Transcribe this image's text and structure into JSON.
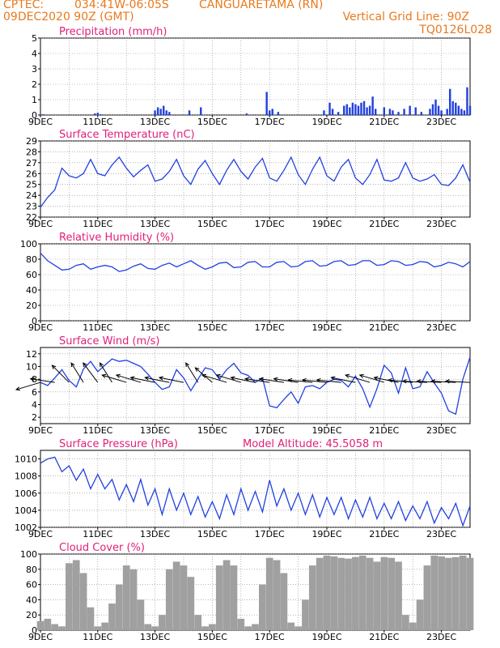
{
  "header": {
    "source": "CPTEC:",
    "coords": "034:41W-06:05S",
    "location": "CANGUARETAMA (RN)",
    "run": "09DEC2020 90Z (GMT)",
    "grid_line": "Vertical Grid Line: 90Z",
    "model": "TQ0126L028"
  },
  "colors": {
    "header": "#e87a1e",
    "title": "#e0207a",
    "line": "#2040e0",
    "cloud": "#a0a0a0",
    "grid": "#888888"
  },
  "chart_data": [
    {
      "type": "bar",
      "title": "Precipitation (mm/h)",
      "x_tick_labels": [
        "9DEC",
        "11DEC",
        "13DEC",
        "15DEC",
        "17DEC",
        "19DEC",
        "21DEC",
        "23DEC"
      ],
      "ylim": [
        0,
        5
      ],
      "yticks": [
        0,
        1,
        2,
        3,
        4,
        5
      ],
      "x_range_days": [
        9,
        24
      ],
      "color": "#2040e0",
      "points": [
        [
          9.1,
          0.05
        ],
        [
          10.9,
          0.1
        ],
        [
          11.0,
          0.15
        ],
        [
          11.1,
          0.05
        ],
        [
          13.0,
          0.3
        ],
        [
          13.1,
          0.5
        ],
        [
          13.2,
          0.4
        ],
        [
          13.3,
          0.6
        ],
        [
          13.4,
          0.3
        ],
        [
          13.5,
          0.2
        ],
        [
          14.2,
          0.3
        ],
        [
          14.6,
          0.5
        ],
        [
          16.2,
          0.1
        ],
        [
          16.9,
          1.5
        ],
        [
          17.0,
          0.3
        ],
        [
          17.1,
          0.4
        ],
        [
          17.3,
          0.2
        ],
        [
          18.9,
          0.3
        ],
        [
          19.1,
          0.8
        ],
        [
          19.2,
          0.4
        ],
        [
          19.4,
          0.2
        ],
        [
          19.6,
          0.6
        ],
        [
          19.7,
          0.7
        ],
        [
          19.8,
          0.5
        ],
        [
          19.9,
          0.8
        ],
        [
          20.0,
          0.7
        ],
        [
          20.1,
          0.6
        ],
        [
          20.2,
          0.8
        ],
        [
          20.3,
          0.9
        ],
        [
          20.4,
          0.5
        ],
        [
          20.5,
          0.6
        ],
        [
          20.6,
          1.2
        ],
        [
          20.7,
          0.4
        ],
        [
          21.0,
          0.5
        ],
        [
          21.2,
          0.4
        ],
        [
          21.3,
          0.3
        ],
        [
          21.5,
          0.2
        ],
        [
          21.7,
          0.4
        ],
        [
          21.9,
          0.6
        ],
        [
          22.1,
          0.5
        ],
        [
          22.3,
          0.2
        ],
        [
          22.6,
          0.4
        ],
        [
          22.7,
          0.7
        ],
        [
          22.8,
          1.0
        ],
        [
          22.9,
          0.6
        ],
        [
          23.0,
          0.3
        ],
        [
          23.2,
          0.4
        ],
        [
          23.3,
          1.7
        ],
        [
          23.4,
          0.9
        ],
        [
          23.5,
          0.8
        ],
        [
          23.6,
          0.6
        ],
        [
          23.7,
          0.4
        ],
        [
          23.8,
          0.3
        ],
        [
          23.9,
          1.8
        ],
        [
          24.0,
          0.6
        ]
      ]
    },
    {
      "type": "line",
      "title": "Surface Temperature (nC)",
      "x_tick_labels": [
        "9DEC",
        "11DEC",
        "13DEC",
        "15DEC",
        "17DEC",
        "19DEC",
        "21DEC",
        "23DEC"
      ],
      "ylim": [
        22,
        29
      ],
      "yticks": [
        22,
        23,
        24,
        25,
        26,
        27,
        28,
        29
      ],
      "x_range_days": [
        9,
        24
      ],
      "color": "#2040e0",
      "x": [
        9.0,
        9.25,
        9.5,
        9.75,
        10.0,
        10.25,
        10.5,
        10.75,
        11.0,
        11.25,
        11.5,
        11.75,
        12.0,
        12.25,
        12.5,
        12.75,
        13.0,
        13.25,
        13.5,
        13.75,
        14.0,
        14.25,
        14.5,
        14.75,
        15.0,
        15.25,
        15.5,
        15.75,
        16.0,
        16.25,
        16.5,
        16.75,
        17.0,
        17.25,
        17.5,
        17.75,
        18.0,
        18.25,
        18.5,
        18.75,
        19.0,
        19.25,
        19.5,
        19.75,
        20.0,
        20.25,
        20.5,
        20.75,
        21.0,
        21.25,
        21.5,
        21.75,
        22.0,
        22.25,
        22.5,
        22.75,
        23.0,
        23.25,
        23.5,
        23.75,
        24.0
      ],
      "y": [
        22.9,
        23.8,
        24.5,
        26.5,
        25.8,
        25.6,
        26.0,
        27.3,
        26.0,
        25.8,
        26.8,
        27.5,
        26.5,
        25.7,
        26.3,
        26.8,
        25.3,
        25.5,
        26.2,
        27.3,
        25.8,
        25.0,
        26.4,
        27.2,
        26.0,
        25.0,
        26.3,
        27.3,
        26.2,
        25.5,
        26.6,
        27.4,
        25.6,
        25.3,
        26.3,
        27.5,
        25.9,
        25.0,
        26.4,
        27.5,
        25.8,
        25.3,
        26.6,
        27.3,
        25.6,
        25.0,
        25.9,
        27.3,
        25.4,
        25.3,
        25.6,
        27.0,
        25.6,
        25.3,
        25.5,
        25.9,
        25.0,
        24.9,
        25.6,
        26.8,
        25.2
      ]
    },
    {
      "type": "line",
      "title": "Relative Humidity (%)",
      "x_tick_labels": [
        "9DEC",
        "11DEC",
        "13DEC",
        "15DEC",
        "17DEC",
        "19DEC",
        "21DEC",
        "23DEC"
      ],
      "ylim": [
        0,
        100
      ],
      "yticks": [
        0,
        20,
        40,
        60,
        80,
        100
      ],
      "x_range_days": [
        9,
        24
      ],
      "color": "#2040e0",
      "x": [
        9.0,
        9.25,
        9.5,
        9.75,
        10.0,
        10.25,
        10.5,
        10.75,
        11.0,
        11.25,
        11.5,
        11.75,
        12.0,
        12.25,
        12.5,
        12.75,
        13.0,
        13.25,
        13.5,
        13.75,
        14.0,
        14.25,
        14.5,
        14.75,
        15.0,
        15.25,
        15.5,
        15.75,
        16.0,
        16.25,
        16.5,
        16.75,
        17.0,
        17.25,
        17.5,
        17.75,
        18.0,
        18.25,
        18.5,
        18.75,
        19.0,
        19.25,
        19.5,
        19.75,
        20.0,
        20.25,
        20.5,
        20.75,
        21.0,
        21.25,
        21.5,
        21.75,
        22.0,
        22.25,
        22.5,
        22.75,
        23.0,
        23.25,
        23.5,
        23.75,
        24.0
      ],
      "y": [
        88,
        78,
        72,
        66,
        67,
        72,
        74,
        67,
        70,
        72,
        70,
        64,
        66,
        71,
        74,
        68,
        67,
        72,
        75,
        70,
        74,
        78,
        72,
        67,
        70,
        75,
        76,
        69,
        70,
        76,
        77,
        70,
        70,
        76,
        77,
        70,
        71,
        77,
        78,
        71,
        72,
        77,
        78,
        72,
        73,
        78,
        78,
        72,
        73,
        78,
        77,
        72,
        73,
        77,
        76,
        70,
        72,
        76,
        74,
        70,
        77
      ]
    },
    {
      "type": "line",
      "title": "Surface Wind (m/s)",
      "x_tick_labels": [
        "9DEC",
        "11DEC",
        "13DEC",
        "15DEC",
        "17DEC",
        "19DEC",
        "21DEC",
        "23DEC"
      ],
      "ylim": [
        1,
        13
      ],
      "yticks": [
        2,
        4,
        6,
        8,
        10,
        12
      ],
      "x_range_days": [
        9,
        24
      ],
      "color": "#2040e0",
      "x": [
        9.0,
        9.25,
        9.5,
        9.75,
        10.0,
        10.25,
        10.5,
        10.75,
        11.0,
        11.25,
        11.5,
        11.75,
        12.0,
        12.25,
        12.5,
        12.75,
        13.0,
        13.25,
        13.5,
        13.75,
        14.0,
        14.25,
        14.5,
        14.75,
        15.0,
        15.25,
        15.5,
        15.75,
        16.0,
        16.25,
        16.5,
        16.75,
        17.0,
        17.25,
        17.5,
        17.75,
        18.0,
        18.25,
        18.5,
        18.75,
        19.0,
        19.25,
        19.5,
        19.75,
        20.0,
        20.25,
        20.5,
        20.75,
        21.0,
        21.25,
        21.5,
        21.75,
        22.0,
        22.25,
        22.5,
        22.75,
        23.0,
        23.25,
        23.5,
        23.75,
        24.0
      ],
      "y": [
        7.5,
        7.0,
        8.2,
        9.5,
        7.8,
        6.8,
        9.6,
        10.8,
        9.2,
        10.2,
        11.2,
        10.8,
        11.0,
        10.5,
        10.0,
        8.8,
        7.5,
        6.4,
        6.8,
        9.5,
        8.2,
        6.2,
        8.0,
        9.8,
        9.5,
        8.0,
        9.5,
        10.5,
        9.0,
        8.6,
        7.5,
        8.2,
        3.8,
        3.5,
        4.8,
        6.0,
        4.2,
        6.8,
        7.0,
        6.5,
        7.5,
        8.0,
        7.8,
        6.8,
        8.5,
        6.5,
        3.6,
        6.5,
        10.2,
        9.0,
        5.8,
        9.8,
        6.5,
        6.8,
        9.2,
        7.4,
        5.8,
        3.0,
        2.5,
        8.0,
        11.5
      ],
      "wind_arrows": [
        [
          9.0,
          -1,
          -0.3
        ],
        [
          9.5,
          -1,
          0.15
        ],
        [
          10.0,
          -0.7,
          0.7
        ],
        [
          10.5,
          -0.5,
          0.8
        ],
        [
          11.0,
          -0.6,
          0.8
        ],
        [
          11.5,
          -0.5,
          0.8
        ],
        [
          12.0,
          -1,
          0.3
        ],
        [
          12.5,
          -1,
          0.3
        ],
        [
          13.0,
          -1,
          0.2
        ],
        [
          13.5,
          -1,
          0.2
        ],
        [
          14.0,
          -1,
          0.2
        ],
        [
          14.5,
          -0.5,
          0.8
        ],
        [
          15.0,
          -0.7,
          0.6
        ],
        [
          15.5,
          -1,
          0.3
        ],
        [
          16.0,
          -1,
          0.3
        ],
        [
          16.5,
          -1,
          0.2
        ],
        [
          17.0,
          -1,
          0.15
        ],
        [
          17.5,
          -1,
          0.15
        ],
        [
          18.0,
          -1,
          0.15
        ],
        [
          18.5,
          -1,
          0.1
        ],
        [
          19.0,
          -1,
          0.1
        ],
        [
          19.5,
          -1,
          0.1
        ],
        [
          20.0,
          -1,
          0.2
        ],
        [
          20.5,
          -1,
          0.3
        ],
        [
          21.0,
          -1,
          0.3
        ],
        [
          21.5,
          -1,
          0.2
        ],
        [
          22.0,
          -1,
          0.1
        ],
        [
          22.5,
          -1,
          0.05
        ],
        [
          23.0,
          -1,
          0.05
        ],
        [
          23.5,
          -1,
          0.05
        ],
        [
          24.0,
          -1,
          0.05
        ]
      ]
    },
    {
      "type": "line",
      "title": "Surface Pressure (hPa)",
      "annotation": "Model Altitude: 45.5058  m",
      "x_tick_labels": [
        "9DEC",
        "11DEC",
        "13DEC",
        "15DEC",
        "17DEC",
        "19DEC",
        "21DEC",
        "23DEC"
      ],
      "ylim": [
        1002,
        1011
      ],
      "yticks": [
        1002,
        1004,
        1006,
        1008,
        1010
      ],
      "x_range_days": [
        9,
        24
      ],
      "color": "#2040e0",
      "x": [
        9.0,
        9.25,
        9.5,
        9.75,
        10.0,
        10.25,
        10.5,
        10.75,
        11.0,
        11.25,
        11.5,
        11.75,
        12.0,
        12.25,
        12.5,
        12.75,
        13.0,
        13.25,
        13.5,
        13.75,
        14.0,
        14.25,
        14.5,
        14.75,
        15.0,
        15.25,
        15.5,
        15.75,
        16.0,
        16.25,
        16.5,
        16.75,
        17.0,
        17.25,
        17.5,
        17.75,
        18.0,
        18.25,
        18.5,
        18.75,
        19.0,
        19.25,
        19.5,
        19.75,
        20.0,
        20.25,
        20.5,
        20.75,
        21.0,
        21.25,
        21.5,
        21.75,
        22.0,
        22.25,
        22.5,
        22.75,
        23.0,
        23.25,
        23.5,
        23.75,
        24.0
      ],
      "y": [
        1009.5,
        1010.0,
        1010.2,
        1008.5,
        1009.2,
        1007.5,
        1008.8,
        1006.5,
        1008.2,
        1006.5,
        1007.6,
        1005.2,
        1007.0,
        1005.0,
        1007.6,
        1004.6,
        1006.5,
        1003.5,
        1006.5,
        1004.0,
        1006.0,
        1003.5,
        1005.6,
        1003.2,
        1005.0,
        1003.0,
        1005.8,
        1003.5,
        1006.5,
        1004.0,
        1006.2,
        1003.8,
        1007.5,
        1004.5,
        1006.5,
        1004.0,
        1006.0,
        1003.5,
        1005.8,
        1003.2,
        1005.5,
        1003.5,
        1005.5,
        1003.0,
        1005.2,
        1003.2,
        1005.5,
        1003.0,
        1004.8,
        1003.0,
        1005.0,
        1002.8,
        1004.5,
        1003.0,
        1005.0,
        1002.5,
        1004.3,
        1003.0,
        1004.8,
        1002.2,
        1004.5
      ]
    },
    {
      "type": "bar",
      "title": "Cloud Cover (%)",
      "x_tick_labels": [
        "9DEC",
        "11DEC",
        "13DEC",
        "15DEC",
        "17DEC",
        "19DEC",
        "21DEC",
        "23DEC"
      ],
      "ylim": [
        0,
        100
      ],
      "yticks": [
        0,
        20,
        40,
        60,
        80,
        100
      ],
      "x_range_days": [
        9,
        24
      ],
      "color": "#a0a0a0",
      "x": [
        9.0,
        9.25,
        9.5,
        9.75,
        10.0,
        10.25,
        10.5,
        10.75,
        11.0,
        11.25,
        11.5,
        11.75,
        12.0,
        12.25,
        12.5,
        12.75,
        13.0,
        13.25,
        13.5,
        13.75,
        14.0,
        14.25,
        14.5,
        14.75,
        15.0,
        15.25,
        15.5,
        15.75,
        16.0,
        16.25,
        16.5,
        16.75,
        17.0,
        17.25,
        17.5,
        17.75,
        18.0,
        18.25,
        18.5,
        18.75,
        19.0,
        19.25,
        19.5,
        19.75,
        20.0,
        20.25,
        20.5,
        20.75,
        21.0,
        21.25,
        21.5,
        21.75,
        22.0,
        22.25,
        22.5,
        22.75,
        23.0,
        23.25,
        23.5,
        23.75,
        24.0
      ],
      "y": [
        12,
        15,
        8,
        5,
        88,
        92,
        75,
        30,
        5,
        10,
        35,
        60,
        85,
        80,
        40,
        8,
        5,
        20,
        80,
        90,
        85,
        70,
        20,
        5,
        8,
        85,
        92,
        85,
        15,
        5,
        8,
        60,
        95,
        92,
        75,
        10,
        5,
        40,
        85,
        95,
        98,
        97,
        95,
        94,
        96,
        98,
        95,
        90,
        96,
        95,
        90,
        20,
        10,
        40,
        85,
        98,
        97,
        95,
        96,
        98,
        95
      ]
    }
  ]
}
